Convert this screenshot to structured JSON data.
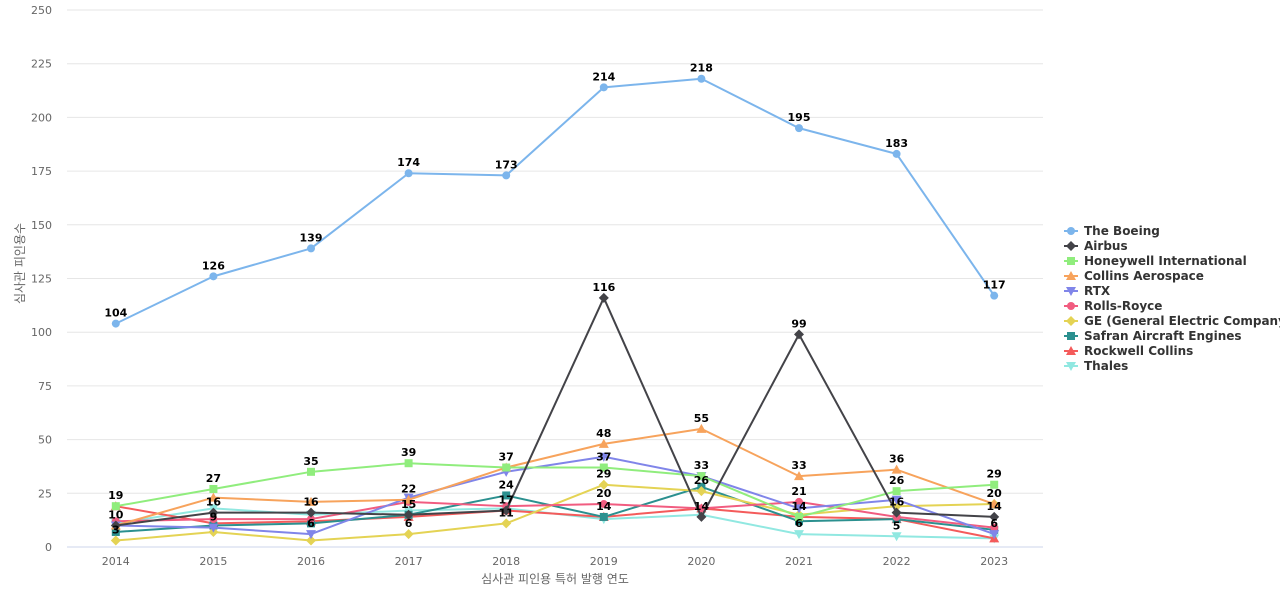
{
  "chart_data": {
    "type": "line",
    "title": "",
    "xlabel": "심사관 피인용 특허 발행 연도",
    "ylabel": "심사관 피인용수",
    "x": [
      "2014",
      "2015",
      "2016",
      "2017",
      "2018",
      "2019",
      "2020",
      "2021",
      "2022",
      "2023"
    ],
    "ylim": [
      0,
      250
    ],
    "yticks": [
      "0",
      "25",
      "50",
      "75",
      "100",
      "125",
      "150",
      "175",
      "200",
      "225",
      "250"
    ],
    "grid": true,
    "legend_position": "right",
    "series": [
      {
        "name": "The Boeing",
        "color": "#7cb5ec",
        "marker": "circle",
        "values": [
          104,
          126,
          139,
          174,
          173,
          214,
          218,
          195,
          183,
          117
        ]
      },
      {
        "name": "Airbus",
        "color": "#434348",
        "marker": "diamond",
        "values": [
          10,
          16,
          16,
          15,
          17,
          116,
          14,
          99,
          16,
          14
        ]
      },
      {
        "name": "Honeywell International",
        "color": "#90ed7d",
        "marker": "square",
        "values": [
          19,
          27,
          35,
          39,
          37,
          37,
          33,
          14,
          26,
          29
        ]
      },
      {
        "name": "Collins Aerospace",
        "color": "#f7a35c",
        "marker": "triangle",
        "values": [
          10,
          23,
          21,
          22,
          37,
          48,
          55,
          33,
          36,
          20
        ]
      },
      {
        "name": "RTX",
        "color": "#8085e9",
        "marker": "triangle-down",
        "values": [
          10,
          9,
          6,
          23,
          35,
          42,
          33,
          18,
          22,
          6
        ]
      },
      {
        "name": "Rolls-Royce",
        "color": "#f15c80",
        "marker": "circle",
        "values": [
          12,
          13,
          13,
          21,
          19,
          20,
          18,
          21,
          14,
          9
        ]
      },
      {
        "name": "GE (General Electric Company)",
        "color": "#e4d354",
        "marker": "diamond",
        "values": [
          3,
          7,
          3,
          6,
          11,
          29,
          26,
          15,
          19,
          20
        ]
      },
      {
        "name": "Safran Aircraft Engines",
        "color": "#2b908f",
        "marker": "square",
        "values": [
          7,
          10,
          11,
          15,
          24,
          14,
          28,
          12,
          13,
          8
        ]
      },
      {
        "name": "Rockwell Collins",
        "color": "#f45b5b",
        "marker": "triangle",
        "values": [
          19,
          11,
          12,
          14,
          17,
          14,
          18,
          14,
          13,
          4
        ]
      },
      {
        "name": "Thales",
        "color": "#91e8e1",
        "marker": "triangle-down",
        "values": [
          11,
          18,
          15,
          17,
          18,
          13,
          15,
          6,
          5,
          4
        ]
      }
    ],
    "data_labels": [
      {
        "x": "2014",
        "y": 104,
        "text": "104"
      },
      {
        "x": "2015",
        "y": 126,
        "text": "126"
      },
      {
        "x": "2016",
        "y": 139,
        "text": "139"
      },
      {
        "x": "2017",
        "y": 174,
        "text": "174"
      },
      {
        "x": "2018",
        "y": 173,
        "text": "173"
      },
      {
        "x": "2019",
        "y": 214,
        "text": "214"
      },
      {
        "x": "2020",
        "y": 218,
        "text": "218"
      },
      {
        "x": "2021",
        "y": 195,
        "text": "195"
      },
      {
        "x": "2022",
        "y": 183,
        "text": "183"
      },
      {
        "x": "2023",
        "y": 117,
        "text": "117"
      },
      {
        "x": "2019",
        "y": 116,
        "text": "116"
      },
      {
        "x": "2021",
        "y": 99,
        "text": "99"
      },
      {
        "x": "2014",
        "y": 19,
        "text": "19"
      },
      {
        "x": "2015",
        "y": 27,
        "text": "27"
      },
      {
        "x": "2016",
        "y": 35,
        "text": "35"
      },
      {
        "x": "2017",
        "y": 39,
        "text": "39"
      },
      {
        "x": "2018",
        "y": 37,
        "text": "37"
      },
      {
        "x": "2019",
        "y": 48,
        "text": "48"
      },
      {
        "x": "2020",
        "y": 55,
        "text": "55"
      },
      {
        "x": "2021",
        "y": 33,
        "text": "33"
      },
      {
        "x": "2022",
        "y": 36,
        "text": "36"
      },
      {
        "x": "2023",
        "y": 29,
        "text": "29"
      },
      {
        "x": "2014",
        "y": 10,
        "text": "10"
      },
      {
        "x": "2015",
        "y": 16,
        "text": "16"
      },
      {
        "x": "2016",
        "y": 16,
        "text": "16"
      },
      {
        "x": "2017",
        "y": 22,
        "text": "22"
      },
      {
        "x": "2018",
        "y": 24,
        "text": "24"
      },
      {
        "x": "2019",
        "y": 37,
        "text": "37"
      },
      {
        "x": "2020",
        "y": 33,
        "text": "33"
      },
      {
        "x": "2021",
        "y": 21,
        "text": "21"
      },
      {
        "x": "2022",
        "y": 26,
        "text": "26"
      },
      {
        "x": "2023",
        "y": 20,
        "text": "20"
      },
      {
        "x": "2014",
        "y": 3,
        "text": "3"
      },
      {
        "x": "2015",
        "y": 9,
        "text": "9"
      },
      {
        "x": "2016",
        "y": 6,
        "text": "6"
      },
      {
        "x": "2017",
        "y": 15,
        "text": "15"
      },
      {
        "x": "2018",
        "y": 17,
        "text": "17"
      },
      {
        "x": "2019",
        "y": 29,
        "text": "29"
      },
      {
        "x": "2020",
        "y": 26,
        "text": "26"
      },
      {
        "x": "2021",
        "y": 14,
        "text": "14"
      },
      {
        "x": "2022",
        "y": 16,
        "text": "16"
      },
      {
        "x": "2023",
        "y": 14,
        "text": "14"
      },
      {
        "x": "2016",
        "y": 6,
        "text": "6"
      },
      {
        "x": "2017",
        "y": 6,
        "text": "6"
      },
      {
        "x": "2018",
        "y": 11,
        "text": "11"
      },
      {
        "x": "2019",
        "y": 20,
        "text": "20"
      },
      {
        "x": "2019",
        "y": 14,
        "text": "14"
      },
      {
        "x": "2020",
        "y": 14,
        "text": "14"
      },
      {
        "x": "2021",
        "y": 6,
        "text": "6"
      },
      {
        "x": "2022",
        "y": 5,
        "text": "5"
      },
      {
        "x": "2023",
        "y": 6,
        "text": "6"
      }
    ]
  }
}
